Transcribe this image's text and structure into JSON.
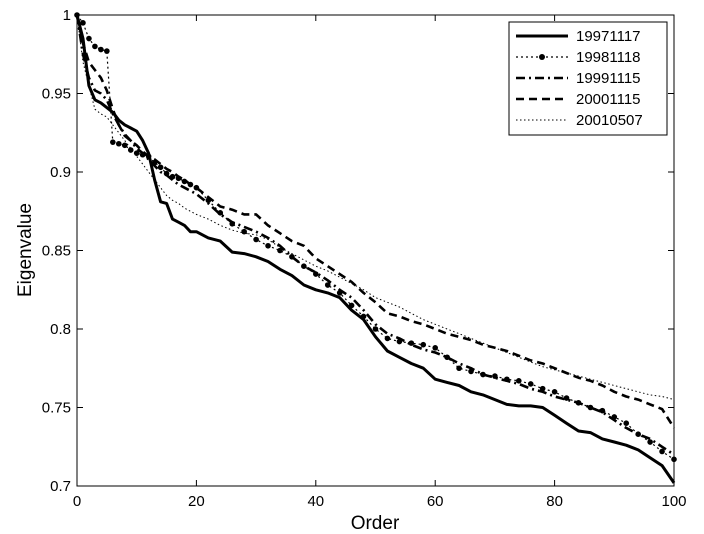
{
  "chart_data": {
    "type": "line",
    "title": "",
    "xlabel": "Order",
    "ylabel": "Eigenvalue",
    "xlim": [
      0,
      100
    ],
    "ylim": [
      0.7,
      1.0
    ],
    "xticks": [
      0,
      20,
      40,
      60,
      80,
      100
    ],
    "yticks": [
      0.7,
      0.75,
      0.8,
      0.85,
      0.9,
      0.95,
      1.0
    ],
    "ytick_labels": [
      "0.7",
      "0.75",
      "0.8",
      "0.85",
      "0.9",
      "0.95",
      "1"
    ],
    "grid": false,
    "legend_position": "top-right",
    "series": [
      {
        "name": "19971117",
        "line_style": "solid",
        "x": [
          0,
          1,
          2,
          3,
          4,
          5,
          6,
          7,
          8,
          9,
          10,
          11,
          12,
          13,
          14,
          15,
          16,
          17,
          18,
          19,
          20,
          22,
          24,
          26,
          28,
          30,
          32,
          34,
          36,
          38,
          40,
          42,
          44,
          46,
          48,
          50,
          52,
          54,
          56,
          58,
          60,
          62,
          64,
          66,
          68,
          70,
          72,
          74,
          76,
          78,
          80,
          82,
          84,
          86,
          88,
          90,
          92,
          94,
          96,
          98,
          100
        ],
        "y": [
          1.0,
          0.985,
          0.955,
          0.946,
          0.944,
          0.941,
          0.938,
          0.933,
          0.93,
          0.928,
          0.926,
          0.92,
          0.912,
          0.895,
          0.881,
          0.88,
          0.87,
          0.868,
          0.866,
          0.862,
          0.862,
          0.858,
          0.856,
          0.849,
          0.848,
          0.846,
          0.843,
          0.838,
          0.834,
          0.828,
          0.825,
          0.823,
          0.82,
          0.812,
          0.806,
          0.795,
          0.786,
          0.782,
          0.778,
          0.775,
          0.768,
          0.766,
          0.764,
          0.76,
          0.758,
          0.755,
          0.752,
          0.751,
          0.751,
          0.75,
          0.745,
          0.74,
          0.735,
          0.734,
          0.73,
          0.728,
          0.726,
          0.723,
          0.718,
          0.713,
          0.702
        ]
      },
      {
        "name": "19981118",
        "line_style": "dotted-marker",
        "x": [
          0,
          1,
          2,
          3,
          4,
          5,
          6,
          7,
          8,
          9,
          10,
          11,
          12,
          13,
          14,
          15,
          16,
          17,
          18,
          19,
          20,
          22,
          24,
          26,
          28,
          30,
          32,
          34,
          36,
          38,
          40,
          42,
          44,
          46,
          48,
          50,
          52,
          54,
          56,
          58,
          60,
          62,
          64,
          66,
          68,
          70,
          72,
          74,
          76,
          78,
          80,
          82,
          84,
          86,
          88,
          90,
          92,
          94,
          96,
          98,
          100
        ],
        "y": [
          1.0,
          0.995,
          0.985,
          0.98,
          0.978,
          0.977,
          0.919,
          0.918,
          0.917,
          0.914,
          0.912,
          0.911,
          0.91,
          0.906,
          0.903,
          0.899,
          0.897,
          0.896,
          0.894,
          0.892,
          0.89,
          0.882,
          0.874,
          0.867,
          0.862,
          0.857,
          0.853,
          0.85,
          0.846,
          0.84,
          0.835,
          0.828,
          0.823,
          0.815,
          0.808,
          0.8,
          0.794,
          0.792,
          0.791,
          0.79,
          0.788,
          0.782,
          0.775,
          0.773,
          0.771,
          0.77,
          0.768,
          0.767,
          0.765,
          0.762,
          0.76,
          0.756,
          0.753,
          0.75,
          0.748,
          0.744,
          0.74,
          0.733,
          0.728,
          0.722,
          0.717
        ]
      },
      {
        "name": "19991115",
        "line_style": "dash-dot",
        "x": [
          0,
          1,
          2,
          3,
          4,
          5,
          6,
          7,
          8,
          9,
          10,
          11,
          12,
          13,
          14,
          15,
          16,
          17,
          18,
          19,
          20,
          22,
          24,
          26,
          28,
          30,
          32,
          34,
          36,
          38,
          40,
          42,
          44,
          46,
          48,
          50,
          52,
          54,
          56,
          58,
          60,
          62,
          64,
          66,
          68,
          70,
          72,
          74,
          76,
          78,
          80,
          82,
          84,
          86,
          88,
          90,
          92,
          94,
          96,
          98,
          100
        ],
        "y": [
          1.0,
          0.975,
          0.96,
          0.952,
          0.95,
          0.946,
          0.937,
          0.93,
          0.924,
          0.92,
          0.915,
          0.912,
          0.908,
          0.904,
          0.9,
          0.898,
          0.895,
          0.892,
          0.89,
          0.888,
          0.886,
          0.88,
          0.873,
          0.868,
          0.865,
          0.862,
          0.858,
          0.853,
          0.846,
          0.84,
          0.836,
          0.831,
          0.825,
          0.82,
          0.812,
          0.803,
          0.797,
          0.794,
          0.79,
          0.787,
          0.785,
          0.782,
          0.778,
          0.775,
          0.771,
          0.769,
          0.767,
          0.765,
          0.762,
          0.76,
          0.757,
          0.755,
          0.753,
          0.75,
          0.747,
          0.742,
          0.737,
          0.733,
          0.73,
          0.725,
          0.72
        ]
      },
      {
        "name": "20001115",
        "line_style": "dashed",
        "x": [
          0,
          1,
          2,
          3,
          4,
          5,
          6,
          7,
          8,
          9,
          10,
          11,
          12,
          13,
          14,
          15,
          16,
          17,
          18,
          19,
          20,
          22,
          24,
          26,
          28,
          30,
          32,
          34,
          36,
          38,
          40,
          42,
          44,
          46,
          48,
          50,
          52,
          54,
          56,
          58,
          60,
          62,
          64,
          66,
          68,
          70,
          72,
          74,
          76,
          78,
          80,
          82,
          84,
          86,
          88,
          90,
          92,
          94,
          96,
          98,
          100
        ],
        "y": [
          1.0,
          0.982,
          0.97,
          0.965,
          0.96,
          0.952,
          0.94,
          0.93,
          0.923,
          0.92,
          0.917,
          0.913,
          0.91,
          0.908,
          0.905,
          0.902,
          0.9,
          0.897,
          0.895,
          0.892,
          0.89,
          0.884,
          0.878,
          0.876,
          0.873,
          0.873,
          0.866,
          0.861,
          0.856,
          0.853,
          0.845,
          0.84,
          0.835,
          0.83,
          0.823,
          0.817,
          0.81,
          0.808,
          0.805,
          0.803,
          0.8,
          0.797,
          0.795,
          0.793,
          0.79,
          0.788,
          0.786,
          0.783,
          0.78,
          0.778,
          0.775,
          0.772,
          0.769,
          0.767,
          0.764,
          0.76,
          0.757,
          0.755,
          0.752,
          0.749,
          0.737
        ]
      },
      {
        "name": "20010507",
        "line_style": "fine-dotted",
        "x": [
          0,
          1,
          2,
          3,
          4,
          5,
          6,
          7,
          8,
          9,
          10,
          11,
          12,
          13,
          14,
          15,
          16,
          17,
          18,
          19,
          20,
          22,
          24,
          26,
          28,
          30,
          32,
          34,
          36,
          38,
          40,
          42,
          44,
          46,
          48,
          50,
          52,
          54,
          56,
          58,
          60,
          62,
          64,
          66,
          68,
          70,
          72,
          74,
          76,
          78,
          80,
          82,
          84,
          86,
          88,
          90,
          92,
          94,
          96,
          98,
          100
        ],
        "y": [
          1.0,
          0.97,
          0.955,
          0.94,
          0.937,
          0.935,
          0.93,
          0.925,
          0.92,
          0.915,
          0.91,
          0.905,
          0.9,
          0.895,
          0.89,
          0.885,
          0.882,
          0.88,
          0.877,
          0.875,
          0.873,
          0.87,
          0.866,
          0.863,
          0.861,
          0.86,
          0.857,
          0.852,
          0.848,
          0.844,
          0.84,
          0.837,
          0.833,
          0.829,
          0.825,
          0.82,
          0.817,
          0.814,
          0.81,
          0.806,
          0.803,
          0.8,
          0.797,
          0.794,
          0.791,
          0.788,
          0.785,
          0.782,
          0.779,
          0.776,
          0.774,
          0.772,
          0.77,
          0.768,
          0.766,
          0.764,
          0.762,
          0.76,
          0.758,
          0.757,
          0.755
        ]
      }
    ]
  }
}
